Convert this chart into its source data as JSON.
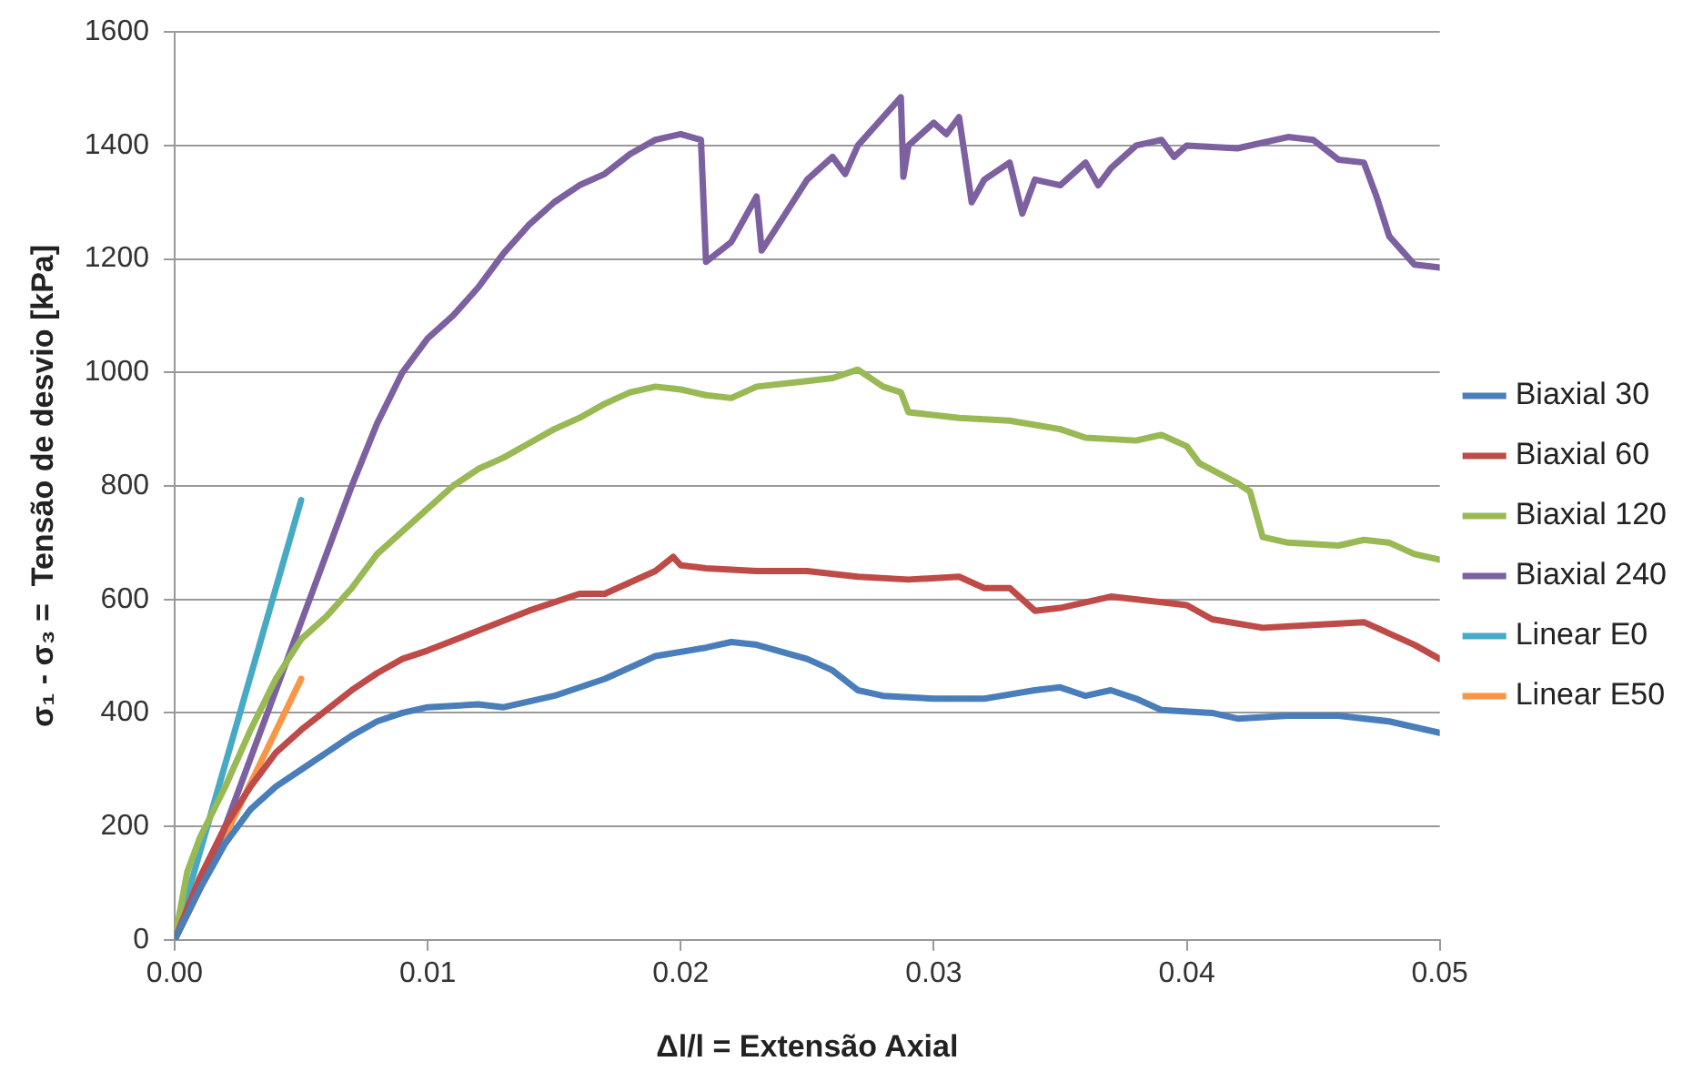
{
  "chart_data": {
    "type": "line",
    "xlabel": "Δl/l = Extensão Axial",
    "ylabel": "σ₁ - σ₃ =  Tensão de desvio [kPa]",
    "xlim": [
      0,
      0.05
    ],
    "xticks": [
      {
        "value": 0,
        "label": "0.00"
      },
      {
        "value": 0.01,
        "label": "0.01"
      },
      {
        "value": 0.02,
        "label": "0.02"
      },
      {
        "value": 0.03,
        "label": "0.03"
      },
      {
        "value": 0.04,
        "label": "0.04"
      },
      {
        "value": 0.05,
        "label": "0.05"
      }
    ],
    "ylim": [
      0,
      1600
    ],
    "yticks": [
      0,
      200,
      400,
      600,
      800,
      1000,
      1200,
      1400,
      1600
    ],
    "grid": "y",
    "legend": "right",
    "marker": "none",
    "line_style": "solid",
    "series": [
      {
        "name": "Biaxial 30",
        "color": "#4a7ebb",
        "x": [
          0,
          0.001,
          0.002,
          0.003,
          0.004,
          0.005,
          0.006,
          0.007,
          0.008,
          0.009,
          0.01,
          0.012,
          0.013,
          0.015,
          0.017,
          0.019,
          0.021,
          0.022,
          0.023,
          0.025,
          0.026,
          0.027,
          0.028,
          0.03,
          0.032,
          0.034,
          0.035,
          0.036,
          0.037,
          0.038,
          0.039,
          0.041,
          0.042,
          0.044,
          0.046,
          0.048,
          0.05
        ],
        "values": [
          0,
          90,
          170,
          230,
          270,
          300,
          330,
          360,
          385,
          400,
          410,
          415,
          410,
          430,
          460,
          500,
          515,
          525,
          520,
          495,
          475,
          440,
          430,
          425,
          425,
          440,
          445,
          430,
          440,
          425,
          405,
          400,
          390,
          395,
          395,
          385,
          365
        ]
      },
      {
        "name": "Biaxial 60",
        "color": "#be4b48",
        "x": [
          0,
          0.001,
          0.002,
          0.003,
          0.004,
          0.005,
          0.006,
          0.007,
          0.008,
          0.009,
          0.01,
          0.012,
          0.014,
          0.016,
          0.017,
          0.019,
          0.0197,
          0.02,
          0.021,
          0.023,
          0.025,
          0.027,
          0.029,
          0.031,
          0.032,
          0.033,
          0.034,
          0.035,
          0.037,
          0.039,
          0.04,
          0.041,
          0.043,
          0.045,
          0.047,
          0.048,
          0.049,
          0.05
        ],
        "values": [
          0,
          110,
          200,
          270,
          330,
          370,
          405,
          440,
          470,
          495,
          510,
          545,
          580,
          610,
          610,
          650,
          675,
          660,
          655,
          650,
          650,
          640,
          635,
          640,
          620,
          620,
          580,
          585,
          605,
          595,
          590,
          565,
          550,
          555,
          560,
          540,
          520,
          495
        ]
      },
      {
        "name": "Biaxial 120",
        "color": "#98b954",
        "x": [
          0,
          0.0005,
          0.001,
          0.002,
          0.003,
          0.004,
          0.005,
          0.006,
          0.007,
          0.008,
          0.009,
          0.01,
          0.011,
          0.012,
          0.013,
          0.014,
          0.015,
          0.016,
          0.017,
          0.018,
          0.019,
          0.02,
          0.021,
          0.022,
          0.023,
          0.025,
          0.026,
          0.027,
          0.028,
          0.0287,
          0.029,
          0.031,
          0.033,
          0.035,
          0.036,
          0.038,
          0.039,
          0.04,
          0.0405,
          0.042,
          0.0425,
          0.043,
          0.044,
          0.046,
          0.047,
          0.048,
          0.049,
          0.05
        ],
        "values": [
          0,
          120,
          180,
          270,
          370,
          460,
          530,
          570,
          620,
          680,
          720,
          760,
          800,
          830,
          850,
          875,
          900,
          920,
          945,
          965,
          975,
          970,
          960,
          955,
          975,
          985,
          990,
          1005,
          975,
          965,
          930,
          920,
          915,
          900,
          885,
          880,
          890,
          870,
          840,
          805,
          790,
          710,
          700,
          695,
          705,
          700,
          680,
          670
        ]
      },
      {
        "name": "Biaxial 240",
        "color": "#7d60a0",
        "x": [
          0,
          0.001,
          0.002,
          0.003,
          0.004,
          0.005,
          0.006,
          0.007,
          0.008,
          0.009,
          0.01,
          0.011,
          0.012,
          0.013,
          0.014,
          0.015,
          0.016,
          0.017,
          0.018,
          0.019,
          0.02,
          0.0208,
          0.021,
          0.022,
          0.023,
          0.0232,
          0.024,
          0.025,
          0.026,
          0.0265,
          0.027,
          0.028,
          0.0287,
          0.0288,
          0.029,
          0.03,
          0.0305,
          0.031,
          0.0315,
          0.032,
          0.033,
          0.0335,
          0.034,
          0.035,
          0.036,
          0.0365,
          0.037,
          0.038,
          0.039,
          0.0395,
          0.04,
          0.042,
          0.044,
          0.045,
          0.046,
          0.047,
          0.0475,
          0.048,
          0.049,
          0.05
        ],
        "values": [
          0,
          90,
          200,
          320,
          440,
          560,
          680,
          800,
          910,
          1000,
          1060,
          1100,
          1150,
          1210,
          1260,
          1300,
          1330,
          1350,
          1385,
          1410,
          1420,
          1410,
          1195,
          1230,
          1310,
          1215,
          1270,
          1340,
          1380,
          1350,
          1400,
          1450,
          1485,
          1345,
          1400,
          1440,
          1420,
          1450,
          1300,
          1340,
          1370,
          1280,
          1340,
          1330,
          1370,
          1330,
          1360,
          1400,
          1410,
          1380,
          1400,
          1395,
          1415,
          1410,
          1375,
          1370,
          1310,
          1240,
          1190,
          1185
        ]
      },
      {
        "name": "Linear E0",
        "color": "#46aac5",
        "x": [
          0,
          0.005
        ],
        "values": [
          0,
          775
        ]
      },
      {
        "name": "Linear E50",
        "color": "#f79646",
        "x": [
          0,
          0.005
        ],
        "values": [
          0,
          460
        ]
      }
    ]
  }
}
